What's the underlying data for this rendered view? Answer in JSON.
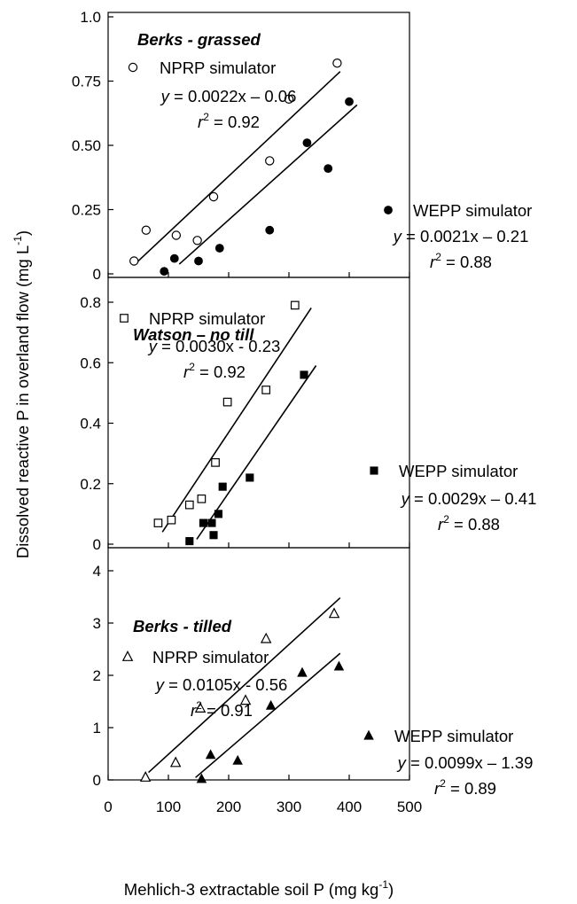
{
  "chart_data": {
    "type": "scatter",
    "xlabel": "Mehlich-3 extractable soil P (mg kg-1)",
    "xlabel_main": "Mehlich-3 extractable soil P (mg kg",
    "xlabel_sup": "-1",
    "xlabel_end": ")",
    "ylabel": "Dissolved reactive P in overland flow (mg L-1)",
    "ylabel_main": "Dissolved reactive P in overland  flow (mg L",
    "ylabel_sup": "-1",
    "ylabel_end": ")",
    "xlim": [
      0,
      500
    ],
    "xticks": [
      "0",
      "100",
      "200",
      "300",
      "400",
      "500"
    ],
    "panels": [
      {
        "title": "Berks - grassed",
        "ylim": [
          0,
          1.0
        ],
        "yticks": [
          {
            "v": 0,
            "label": "0"
          },
          {
            "v": 0.25,
            "label": "0.25"
          },
          {
            "v": 0.5,
            "label": "0.50"
          },
          {
            "v": 0.75,
            "label": "0.75"
          },
          {
            "v": 1.0,
            "label": "1.0"
          }
        ],
        "series": [
          {
            "name": "NPRP simulator",
            "marker": "open-circle",
            "equation": "= 0.0022x – 0.06",
            "r2": "= 0.92",
            "line": {
              "slope": 0.0022,
              "intercept": -0.06,
              "x_range": [
                45,
                385
              ]
            },
            "points": [
              [
                43,
                0.05
              ],
              [
                63,
                0.17
              ],
              [
                113,
                0.15
              ],
              [
                148,
                0.13
              ],
              [
                175,
                0.3
              ],
              [
                268,
                0.44
              ],
              [
                300,
                0.68
              ],
              [
                380,
                0.82
              ]
            ]
          },
          {
            "name": "WEPP simulator",
            "marker": "filled-circle",
            "equation": "= 0.0021x – 0.21",
            "r2": "= 0.88",
            "line": {
              "slope": 0.0021,
              "intercept": -0.21,
              "x_range": [
                118,
                413
              ]
            },
            "points": [
              [
                93,
                0.01
              ],
              [
                110,
                0.06
              ],
              [
                150,
                0.05
              ],
              [
                185,
                0.1
              ],
              [
                268,
                0.17
              ],
              [
                330,
                0.51
              ],
              [
                365,
                0.41
              ],
              [
                400,
                0.67
              ]
            ]
          }
        ]
      },
      {
        "title": "Watson – no till",
        "ylim": [
          0,
          0.8
        ],
        "yticks": [
          {
            "v": 0,
            "label": "0"
          },
          {
            "v": 0.2,
            "label": "0.2"
          },
          {
            "v": 0.4,
            "label": "0.4"
          },
          {
            "v": 0.6,
            "label": "0.6"
          },
          {
            "v": 0.8,
            "label": "0.8"
          }
        ],
        "series": [
          {
            "name": "NPRP simulator",
            "marker": "open-square",
            "equation": "= 0.0030x - 0.23",
            "r2": "= 0.92",
            "line": {
              "slope": 0.003,
              "intercept": -0.23,
              "x_range": [
                90,
                337
              ]
            },
            "points": [
              [
                83,
                0.07
              ],
              [
                105,
                0.08
              ],
              [
                135,
                0.13
              ],
              [
                155,
                0.15
              ],
              [
                178,
                0.27
              ],
              [
                198,
                0.47
              ],
              [
                262,
                0.51
              ],
              [
                310,
                0.79
              ]
            ]
          },
          {
            "name": "WEPP simulator",
            "marker": "filled-square",
            "equation": "= 0.0029x – 0.41",
            "r2": "= 0.88",
            "line": {
              "slope": 0.0029,
              "intercept": -0.41,
              "x_range": [
                147,
                345
              ]
            },
            "points": [
              [
                135,
                0.01
              ],
              [
                158,
                0.07
              ],
              [
                172,
                0.07
              ],
              [
                175,
                0.03
              ],
              [
                183,
                0.1
              ],
              [
                190,
                0.19
              ],
              [
                235,
                0.22
              ],
              [
                325,
                0.56
              ]
            ]
          }
        ]
      },
      {
        "title": "Berks - tilled",
        "ylim": [
          0,
          4
        ],
        "yticks": [
          {
            "v": 0,
            "label": "0"
          },
          {
            "v": 1,
            "label": "1"
          },
          {
            "v": 2,
            "label": "2"
          },
          {
            "v": 3,
            "label": "3"
          },
          {
            "v": 4,
            "label": "4"
          }
        ],
        "series": [
          {
            "name": "NPRP simulator",
            "marker": "open-triangle",
            "equation": "= 0.0105x - 0.56",
            "r2": "= 0.91",
            "line": {
              "slope": 0.0105,
              "intercept": -0.56,
              "x_range": [
                67,
                385
              ]
            },
            "points": [
              [
                62,
                0.05
              ],
              [
                112,
                0.33
              ],
              [
                153,
                1.37
              ],
              [
                228,
                1.52
              ],
              [
                262,
                2.7
              ],
              [
                375,
                3.18
              ]
            ]
          },
          {
            "name": "WEPP simulator",
            "marker": "filled-triangle",
            "equation": "= 0.0099x – 1.39",
            "r2": "= 0.89",
            "line": {
              "slope": 0.0099,
              "intercept": -1.39,
              "x_range": [
                145,
                385
              ]
            },
            "points": [
              [
                155,
                0.02
              ],
              [
                170,
                0.48
              ],
              [
                215,
                0.37
              ],
              [
                270,
                1.42
              ],
              [
                322,
                2.05
              ],
              [
                383,
                2.17
              ]
            ]
          }
        ]
      }
    ]
  }
}
